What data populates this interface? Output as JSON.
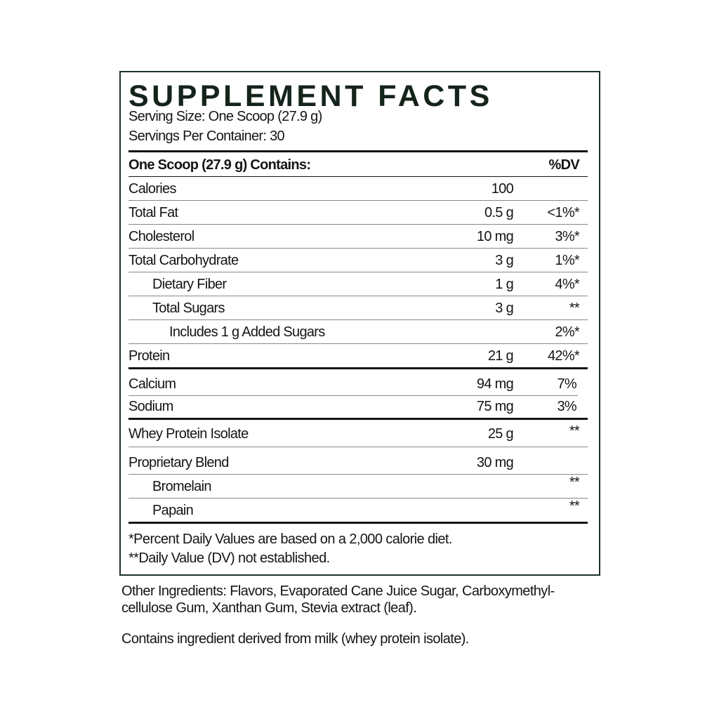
{
  "title": "SUPPLEMENT FACTS",
  "serving_size": "Serving Size: One Scoop (27.9 g)",
  "servings_per_container": "Servings Per Container: 30",
  "header": {
    "label": "One Scoop (27.9 g) Contains:",
    "dv": "%DV"
  },
  "rows": [
    {
      "name": "Calories",
      "amount": "100",
      "dv": ""
    },
    {
      "name": "Total Fat",
      "amount": "0.5 g",
      "dv": "<1%*"
    },
    {
      "name": "Cholesterol",
      "amount": "10 mg",
      "dv": "3%*"
    },
    {
      "name": "Total Carbohydrate",
      "amount": "3 g",
      "dv": "1%*"
    },
    {
      "name": "Dietary Fiber",
      "amount": "1 g",
      "dv": "4%*"
    },
    {
      "name": "Total Sugars",
      "amount": "3 g",
      "dv": "**"
    },
    {
      "name": "Includes 1 g Added Sugars",
      "amount": "",
      "dv": "2%*"
    },
    {
      "name": "Protein",
      "amount": "21 g",
      "dv": "42%*"
    },
    {
      "name": "Calcium",
      "amount": "94 mg",
      "dv": "7%"
    },
    {
      "name": "Sodium",
      "amount": "75 mg",
      "dv": "3%"
    },
    {
      "name": "Whey Protein Isolate",
      "amount": "25 g",
      "dv": "**"
    },
    {
      "name": "Proprietary Blend",
      "amount": "30 mg",
      "dv": ""
    },
    {
      "name": "Bromelain",
      "amount": "",
      "dv": "**"
    },
    {
      "name": "Papain",
      "amount": "",
      "dv": "**"
    }
  ],
  "footnotes": [
    "*Percent Daily Values are based on a 2,000 calorie diet.",
    "**Daily Value (DV) not established."
  ],
  "other_ingredients": [
    "Other Ingredients: Flavors, Evaporated Cane Juice Sugar, Carboxymethyl-",
    "cellulose Gum, Xanthan Gum, Stevia extract (leaf)."
  ],
  "allergen": "Contains ingredient derived from milk (whey protein isolate)."
}
